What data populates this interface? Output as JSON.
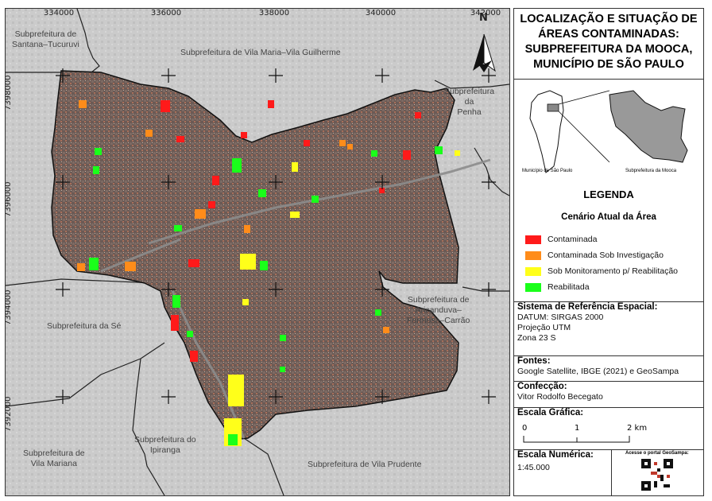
{
  "map": {
    "x_ticks": [
      "334000",
      "336000",
      "338000",
      "340000",
      "342000"
    ],
    "y_ticks": [
      "7398000",
      "7396000",
      "7394000",
      "7392000"
    ],
    "north_label": "N",
    "regions": {
      "santana": "Subprefeitura de\nSantana–Tucuruvi",
      "vila_maria": "Subprefeitura de Vila Maria–Vila Guilherme",
      "penha": "Subprefeitura\nda\nPenha",
      "se": "Subprefeitura da Sé",
      "aricanduva": "Subprefeitura de\nAricanduva–\nFormosa–Carrão",
      "vila_mariana": "Subprefeitura de\nVila Mariana",
      "ipiranga": "Subprefeitura do\nIpiranga",
      "vila_prudente": "Subprefeitura de Vila Prudente"
    }
  },
  "panel": {
    "title": "LOCALIZAÇÃO E SITUAÇÃO DE ÁREAS CONTAMINADAS: SUBPREFEITURA DA MOOCA, MUNICÍPIO DE SÃO PAULO",
    "inset": {
      "city_caption": "Município de São Paulo",
      "sub_caption": "Subprefeitura da Mooca"
    },
    "legend": {
      "heading": "LEGENDA",
      "subheading": "Cenário Atual da Área",
      "items": [
        {
          "label": "Contaminada",
          "color": "#ff1a1a"
        },
        {
          "label": "Contaminada Sob Investigação",
          "color": "#ff8c1a"
        },
        {
          "label": "Sob Monitoramento p/ Reabilitação",
          "color": "#ffff1a"
        },
        {
          "label": "Reabilitada",
          "color": "#1aff1a"
        }
      ]
    },
    "srs": {
      "heading": "Sistema de Referência Espacial:",
      "lines": [
        "DATUM: SIRGAS 2000",
        "Projeção UTM",
        "Zona 23 S"
      ]
    },
    "fontes": {
      "heading": "Fontes:",
      "text": "Google Satellite, IBGE (2021) e GeoSampa"
    },
    "confeccao": {
      "heading": "Confecção:",
      "text": "Vitor Rodolfo Becegato"
    },
    "scale_bar": {
      "heading": "Escala Gráfica:",
      "labels": [
        "0",
        "1",
        "2 km"
      ]
    },
    "scale_numeric": {
      "heading": "Escala Numérica:",
      "text": "1:45.000"
    },
    "qr_caption": "Acesse o portal GeoSampa:"
  }
}
